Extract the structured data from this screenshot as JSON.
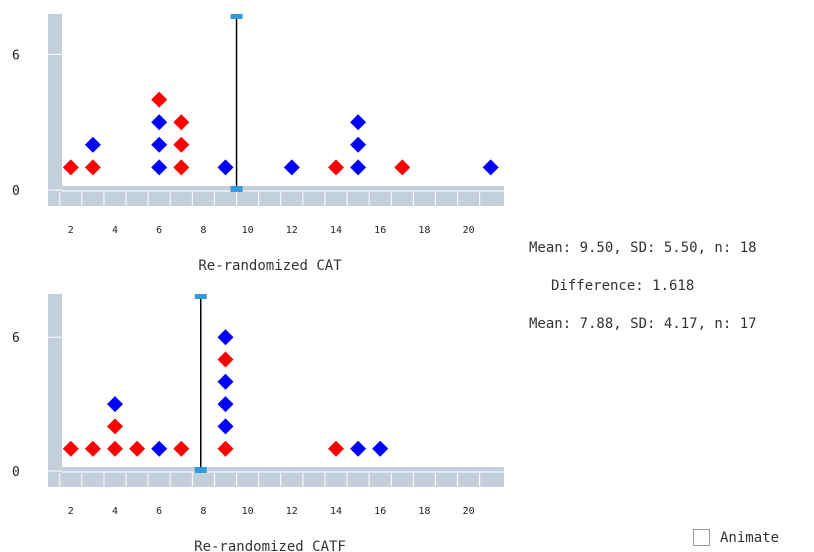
{
  "chart_data": [
    {
      "type": "scatter",
      "xlabel": "Re-randomized CAT",
      "xlim": [
        1,
        21.6
      ],
      "ylim": [
        0,
        6.8
      ],
      "x_ticks": [
        2,
        4,
        6,
        8,
        10,
        12,
        14,
        16,
        18,
        20
      ],
      "y_ticks": [
        0,
        6
      ],
      "mean_marker": 9.5,
      "points": [
        {
          "x": 2,
          "level": 1,
          "color": "red"
        },
        {
          "x": 3,
          "level": 1,
          "color": "red"
        },
        {
          "x": 3,
          "level": 2,
          "color": "blue"
        },
        {
          "x": 6,
          "level": 1,
          "color": "blue"
        },
        {
          "x": 6,
          "level": 2,
          "color": "blue"
        },
        {
          "x": 6,
          "level": 3,
          "color": "blue"
        },
        {
          "x": 6,
          "level": 4,
          "color": "red"
        },
        {
          "x": 7,
          "level": 1,
          "color": "red"
        },
        {
          "x": 7,
          "level": 2,
          "color": "red"
        },
        {
          "x": 7,
          "level": 3,
          "color": "red"
        },
        {
          "x": 9,
          "level": 1,
          "color": "blue"
        },
        {
          "x": 12,
          "level": 1,
          "color": "blue"
        },
        {
          "x": 14,
          "level": 1,
          "color": "red"
        },
        {
          "x": 15,
          "level": 1,
          "color": "blue"
        },
        {
          "x": 15,
          "level": 2,
          "color": "blue"
        },
        {
          "x": 15,
          "level": 3,
          "color": "blue"
        },
        {
          "x": 17,
          "level": 1,
          "color": "red"
        },
        {
          "x": 21,
          "level": 1,
          "color": "blue"
        }
      ]
    },
    {
      "type": "scatter",
      "xlabel": "Re-randomized CATF",
      "xlim": [
        1,
        21.6
      ],
      "ylim": [
        0,
        7.6
      ],
      "x_ticks": [
        2,
        4,
        6,
        8,
        10,
        12,
        14,
        16,
        18,
        20
      ],
      "y_ticks": [
        0,
        6
      ],
      "mean_marker": 7.88,
      "points": [
        {
          "x": 2,
          "level": 1,
          "color": "red"
        },
        {
          "x": 3,
          "level": 1,
          "color": "red"
        },
        {
          "x": 4,
          "level": 1,
          "color": "red"
        },
        {
          "x": 4,
          "level": 2,
          "color": "red"
        },
        {
          "x": 4,
          "level": 3,
          "color": "blue"
        },
        {
          "x": 5,
          "level": 1,
          "color": "red"
        },
        {
          "x": 6,
          "level": 1,
          "color": "blue"
        },
        {
          "x": 7,
          "level": 1,
          "color": "red"
        },
        {
          "x": 9,
          "level": 1,
          "color": "red"
        },
        {
          "x": 9,
          "level": 2,
          "color": "blue"
        },
        {
          "x": 9,
          "level": 3,
          "color": "blue"
        },
        {
          "x": 9,
          "level": 4,
          "color": "blue"
        },
        {
          "x": 9,
          "level": 5,
          "color": "red"
        },
        {
          "x": 9,
          "level": 6,
          "color": "blue"
        },
        {
          "x": 14,
          "level": 1,
          "color": "red"
        },
        {
          "x": 15,
          "level": 1,
          "color": "blue"
        },
        {
          "x": 16,
          "level": 1,
          "color": "blue"
        }
      ]
    }
  ],
  "stats": {
    "top": "Mean: 9.50, SD: 5.50, n: 18",
    "difference": "Difference: 1.618",
    "bottom": "Mean: 7.88, SD: 4.17, n: 17"
  },
  "animate_label": "Animate",
  "colors": {
    "red": "#ff0000",
    "blue": "#0000ff",
    "axis_band": "#c3d0dc",
    "mean_handle": "#3399dd"
  }
}
